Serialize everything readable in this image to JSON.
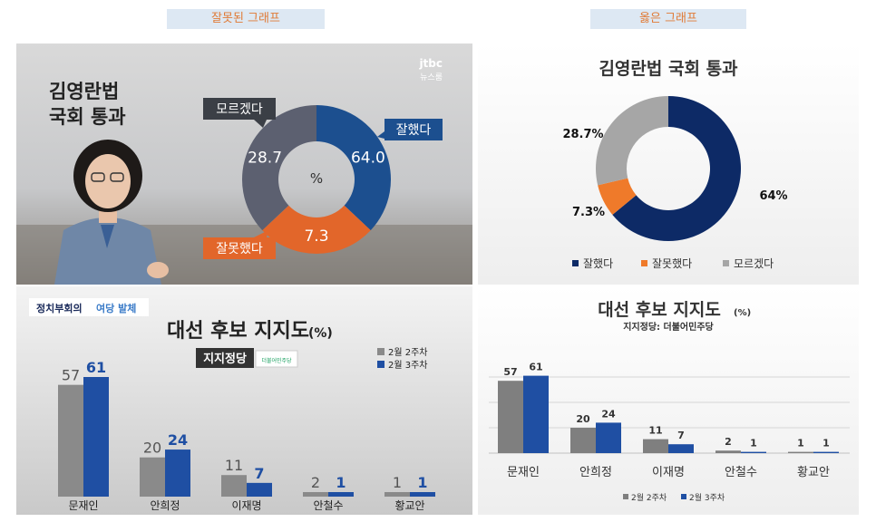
{
  "headers": {
    "wrong": "잘못된 그래프",
    "right": "옳은 그래프"
  },
  "wrong_top": {
    "title_line1": "김영란법",
    "title_line2": "국회 통과",
    "logo_line1": "jtbc",
    "logo_line2": "뉴스룸",
    "center": "%",
    "callouts": {
      "good": "잘했다",
      "bad": "잘못했다",
      "unknown": "모르겠다"
    }
  },
  "wrong_bottom": {
    "tag": "여당 발체",
    "tag_brand": "정치부회의",
    "title": "대선 후보 지지도",
    "unit": "(%)",
    "subtitle_box": "지지정당",
    "party_badge": "더불어민주당"
  },
  "colors": {
    "navy": "#0d2a66",
    "orange": "#ef7a2a",
    "gray": "#a6a6a6",
    "blue": "#1f4fa3",
    "tv_blue": "#1c4f8f",
    "tv_orange": "#e2662a",
    "tv_gray": "#5c6070"
  },
  "chart_data": [
    {
      "id": "wrong-donut",
      "type": "pie",
      "categories": [
        "잘했다",
        "잘못했다",
        "모르겠다"
      ],
      "values": [
        64.0,
        7.3,
        28.7
      ],
      "value_labels": [
        "64.0",
        "7.3",
        "28.7"
      ]
    },
    {
      "id": "right-donut",
      "type": "pie",
      "title": "김영란법 국회 통과",
      "categories": [
        "잘했다",
        "잘못했다",
        "모르겠다"
      ],
      "values": [
        64,
        7.3,
        28.7
      ],
      "value_labels": [
        "64%",
        "7.3%",
        "28.7%"
      ],
      "legend": "bottom"
    },
    {
      "id": "wrong-bars",
      "type": "bar",
      "categories": [
        "문재인",
        "안희정",
        "이재명",
        "안철수",
        "황교안"
      ],
      "series": [
        {
          "name": "2월 2주차",
          "values": [
            57,
            20,
            11,
            2,
            1
          ]
        },
        {
          "name": "2월 3주차",
          "values": [
            61,
            24,
            7,
            1,
            1
          ]
        }
      ],
      "legend": "top-right"
    },
    {
      "id": "right-bars",
      "type": "bar",
      "title": "대선 후보 지지도",
      "unit": "(%)",
      "subtitle": "지지정당: 더불어민주당",
      "categories": [
        "문재인",
        "안희정",
        "이재명",
        "안철수",
        "황교안"
      ],
      "series": [
        {
          "name": "2월 2주차",
          "values": [
            57,
            20,
            11,
            2,
            1
          ]
        },
        {
          "name": "2월 3주차",
          "values": [
            61,
            24,
            7,
            1,
            1
          ]
        }
      ],
      "ylim": [
        0,
        70
      ],
      "grid": true,
      "legend": "bottom"
    }
  ]
}
